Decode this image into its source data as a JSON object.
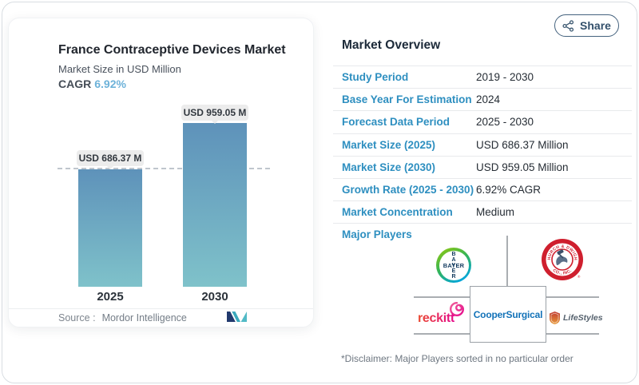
{
  "page": {
    "share_label": "Share"
  },
  "chart": {
    "title": "France Contraceptive Devices Market",
    "subtitle": "Market Size in USD Million",
    "cagr_label": "CAGR",
    "cagr_value": "6.92%",
    "source_label": "Source :",
    "source_value": "Mordor Intelligence"
  },
  "chart_data": {
    "type": "bar",
    "title": "France Contraceptive Devices Market",
    "subtitle": "Market Size in USD Million",
    "unit": "USD Million",
    "cagr_pct": 6.92,
    "categories": [
      "2025",
      "2030"
    ],
    "values": [
      686.37,
      959.05
    ],
    "data_labels": [
      "USD 686.37 M",
      "USD 959.05 M"
    ],
    "reference_line": {
      "style": "dashed",
      "at_value": 686.37
    },
    "ylim": [
      0,
      1000
    ],
    "legend": "none",
    "bar_gradient": [
      "#5e92ba",
      "#7fc2ca"
    ]
  },
  "overview": {
    "title": "Market Overview",
    "rows": [
      {
        "label": "Study Period",
        "value": "2019 - 2030"
      },
      {
        "label": "Base Year For Estimation",
        "value": "2024"
      },
      {
        "label": "Forecast Data Period",
        "value": "2025 - 2030"
      },
      {
        "label": "Market Size (2025)",
        "value": "USD 686.37 Million"
      },
      {
        "label": "Market Size (2030)",
        "value": "USD 959.05 Million"
      },
      {
        "label": "Growth Rate (2025 - 2030)",
        "value": "6.92% CAGR"
      },
      {
        "label": "Market Concentration",
        "value": "Medium"
      }
    ],
    "major_players_label": "Major Players",
    "disclaimer": "*Disclaimer: Major Players sorted in no particular order"
  },
  "players": {
    "bayer": {
      "text": "BAYER"
    },
    "church_dwight": {
      "text_top": "CHURCH & DWIGHT",
      "text_bottom": "CO., INC.",
      "reg": "®"
    },
    "reckitt": {
      "text": "reckitt"
    },
    "coopersurgical": {
      "text": "CooperSurgical"
    },
    "lifestyles": {
      "text": "LifeStyles"
    }
  },
  "colors": {
    "accent_blue": "#2e8fc0",
    "cagr_blue": "#6db2d9",
    "dark_text": "#232a33",
    "bar_top": "#5e92ba",
    "bar_bottom": "#7fc2ca",
    "reckitt_pink": "#e50b8c",
    "bayer_green": "#7fc51d",
    "bayer_blue": "#00a5e0",
    "cd_red": "#cf1f2e",
    "cooper_blue": "#1272b8"
  }
}
